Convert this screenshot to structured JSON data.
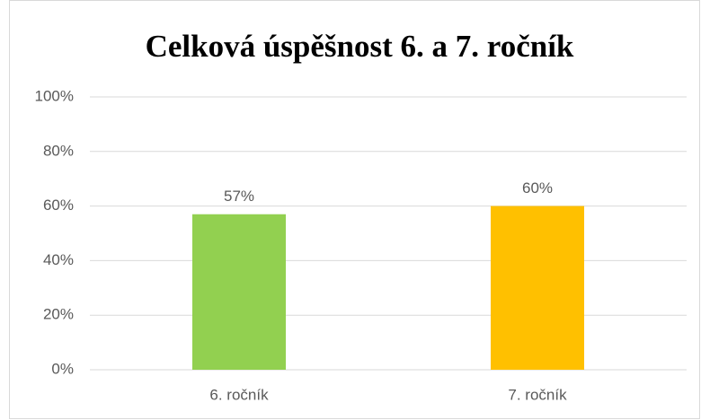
{
  "chart_data": {
    "type": "bar",
    "title": "Celková úspěšnost 6. a 7. ročník",
    "categories": [
      "6. ročník",
      "7. ročník"
    ],
    "values": [
      57,
      60
    ],
    "value_labels": [
      "57%",
      "60%"
    ],
    "colors": [
      "#92d050",
      "#ffc000"
    ],
    "ylim": [
      0,
      100
    ],
    "yticks": [
      {
        "value": 0,
        "label": "0%"
      },
      {
        "value": 20,
        "label": "20%"
      },
      {
        "value": 40,
        "label": "40%"
      },
      {
        "value": 60,
        "label": "60%"
      },
      {
        "value": 80,
        "label": "80%"
      },
      {
        "value": 100,
        "label": "100%"
      }
    ],
    "grid": true
  }
}
